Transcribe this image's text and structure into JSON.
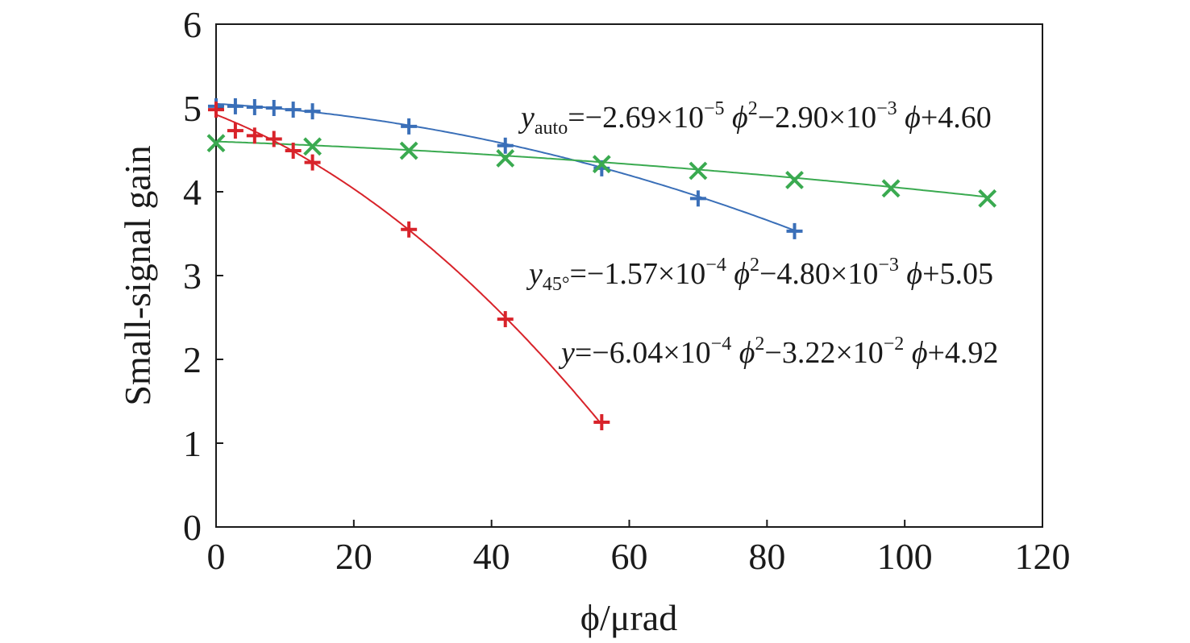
{
  "chart_data": {
    "type": "scatter",
    "xlabel": "ϕ/μrad",
    "ylabel": "Small-signal gain",
    "xlim": [
      0,
      120
    ],
    "ylim": [
      0,
      6
    ],
    "xticks": [
      0,
      20,
      40,
      60,
      80,
      100,
      120
    ],
    "yticks": [
      0,
      1,
      2,
      3,
      4,
      5,
      6
    ],
    "grid": false,
    "legend": "none",
    "series": [
      {
        "color": "#3a6fb8",
        "marker": "plus",
        "fit": {
          "a": -0.000157,
          "b": -0.0048,
          "c": 5.05
        },
        "x": [
          0,
          2.8,
          5.6,
          8.4,
          11.2,
          14,
          28,
          42,
          56,
          70,
          84
        ],
        "y": [
          5.02,
          5.02,
          5.01,
          5.0,
          4.98,
          4.96,
          4.78,
          4.55,
          4.28,
          3.92,
          3.53
        ]
      },
      {
        "color": "#3aaa50",
        "marker": "x",
        "fit": {
          "a": -2.69e-05,
          "b": -0.0029,
          "c": 4.6
        },
        "x": [
          0,
          14,
          28,
          42,
          56,
          70,
          84,
          98,
          112
        ],
        "y": [
          4.58,
          4.54,
          4.49,
          4.4,
          4.33,
          4.25,
          4.14,
          4.04,
          3.92
        ]
      },
      {
        "color": "#d8232a",
        "marker": "plus",
        "fit": {
          "a": -0.000604,
          "b": -0.0322,
          "c": 4.92
        },
        "x": [
          0,
          2.8,
          5.6,
          8.4,
          11.2,
          14,
          28,
          42,
          56
        ],
        "y": [
          4.98,
          4.73,
          4.67,
          4.63,
          4.49,
          4.35,
          3.55,
          2.48,
          1.25
        ]
      }
    ],
    "annotations": {
      "auto": {
        "y": "y",
        "sub": "auto",
        "a_coef": "=−2.69×10",
        "a_exp": "−5",
        "phi1": " ϕ",
        "sq": "2",
        "b_coef": "−2.90×10",
        "b_exp": "−3",
        "phi2": " ϕ",
        "c_term": "+4.60"
      },
      "deg45": {
        "y": "y",
        "sub": "45°",
        "a_coef": "=−1.57×10",
        "a_exp": "−4",
        "phi1": " ϕ",
        "sq": "2",
        "b_coef": "−4.80×10",
        "b_exp": "−3",
        "phi2": " ϕ",
        "c_term": "+5.05"
      },
      "plain": {
        "y": "y",
        "a_coef": "=−6.04×10",
        "a_exp": "−4",
        "phi1": " ϕ",
        "sq": "2",
        "b_coef": "−3.22×10",
        "b_exp": "−2",
        "phi2": " ϕ",
        "c_term": "+4.92"
      }
    }
  }
}
